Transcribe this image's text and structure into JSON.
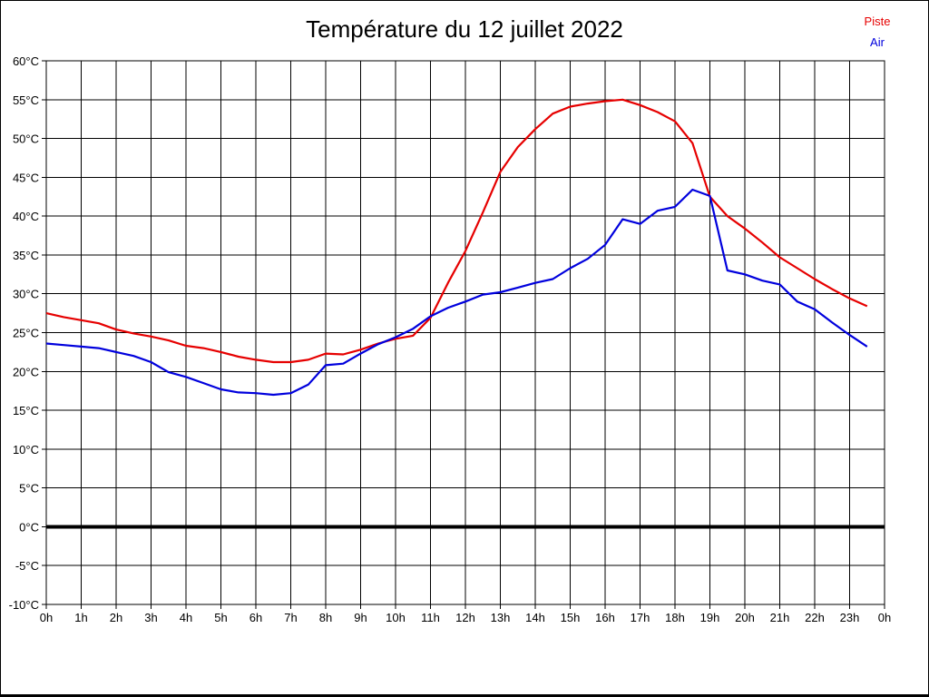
{
  "title": "Température du 12 juillet 2022",
  "legend": [
    {
      "label": "Piste",
      "color": "#e60000"
    },
    {
      "label": "Air",
      "color": "#0000dd"
    }
  ],
  "chart_data": {
    "type": "line",
    "title": "Température du 12 juillet 2022",
    "xlabel": "",
    "ylabel": "",
    "xlim": [
      0,
      24
    ],
    "ylim": [
      -10,
      60
    ],
    "grid": true,
    "zero_line_value": 0,
    "legend_position": "top-right",
    "x_tick_labels": [
      "0h",
      "1h",
      "2h",
      "3h",
      "4h",
      "5h",
      "6h",
      "7h",
      "8h",
      "9h",
      "10h",
      "11h",
      "12h",
      "13h",
      "14h",
      "15h",
      "16h",
      "17h",
      "18h",
      "19h",
      "20h",
      "21h",
      "22h",
      "23h",
      "0h"
    ],
    "y_tick_labels": [
      "60°C",
      "55°C",
      "50°C",
      "45°C",
      "40°C",
      "35°C",
      "30°C",
      "25°C",
      "20°C",
      "15°C",
      "10°C",
      "5°C",
      "0°C",
      "-5°C",
      "-10°C"
    ],
    "x_start_hours": 0,
    "x_step_hours": 0.5,
    "series": [
      {
        "name": "Piste",
        "color": "#e60000",
        "values": [
          27.5,
          27.0,
          26.6,
          26.2,
          25.4,
          24.9,
          24.5,
          24.0,
          23.3,
          23.0,
          22.5,
          21.9,
          21.5,
          21.2,
          21.2,
          21.5,
          22.3,
          22.2,
          22.8,
          23.6,
          24.2,
          24.6,
          26.9,
          31.4,
          35.5,
          40.5,
          45.7,
          48.9,
          51.2,
          53.2,
          54.1,
          54.5,
          54.8,
          55.0,
          54.3,
          53.4,
          52.2,
          49.4,
          42.5,
          40.0,
          38.4,
          36.6,
          34.7,
          33.3,
          31.9,
          30.6,
          29.4,
          28.4
        ]
      },
      {
        "name": "Air",
        "color": "#0000dd",
        "values": [
          23.6,
          23.4,
          23.2,
          23.0,
          22.5,
          22.0,
          21.2,
          19.9,
          19.3,
          18.5,
          17.7,
          17.3,
          17.2,
          17.0,
          17.2,
          18.3,
          20.8,
          21.0,
          22.3,
          23.5,
          24.4,
          25.5,
          27.1,
          28.2,
          29.0,
          29.9,
          30.2,
          30.8,
          31.4,
          31.9,
          33.3,
          34.5,
          36.3,
          39.6,
          39.0,
          40.7,
          41.2,
          43.4,
          42.6,
          33.0,
          32.5,
          31.7,
          31.2,
          29.0,
          28.0,
          26.3,
          24.7,
          23.2
        ]
      }
    ]
  }
}
